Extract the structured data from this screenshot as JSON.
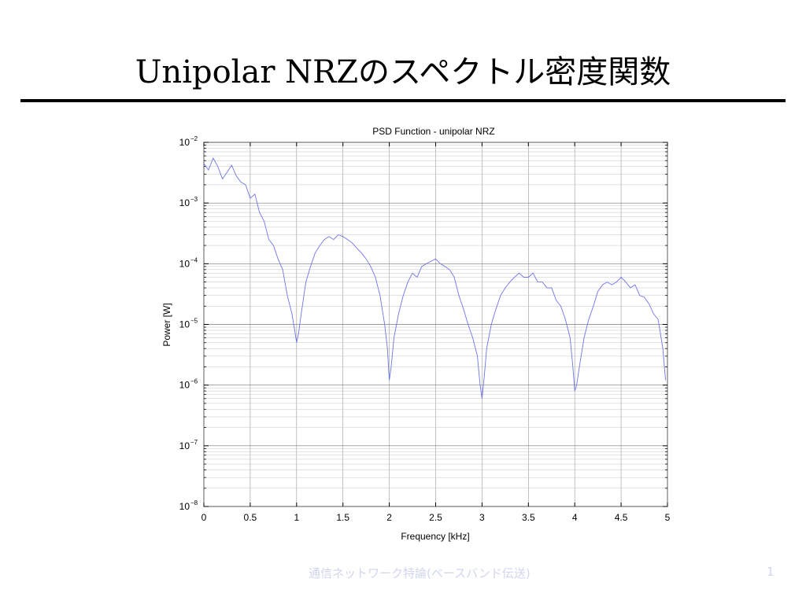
{
  "slide": {
    "title": "Unipolar NRZのスペクトル密度関数",
    "footer": "通信ネットワーク特論(ベースバンド伝送)",
    "page_number": "1"
  },
  "chart_data": {
    "type": "line",
    "title": "PSD Function - unipolar NRZ",
    "xlabel": "Frequency [kHz]",
    "ylabel": "Power [W]",
    "xlim": [
      0,
      5
    ],
    "ylim_exponent": [
      -8,
      -2
    ],
    "y_scale": "log",
    "grid": true,
    "x_ticks": [
      "0",
      "0.5",
      "1",
      "1.5",
      "2",
      "2.5",
      "3",
      "3.5",
      "4",
      "4.5",
      "5"
    ],
    "y_ticks": [
      {
        "base": "10",
        "exp": "-2"
      },
      {
        "base": "10",
        "exp": "-3"
      },
      {
        "base": "10",
        "exp": "-4"
      },
      {
        "base": "10",
        "exp": "-5"
      },
      {
        "base": "10",
        "exp": "-6"
      },
      {
        "base": "10",
        "exp": "-7"
      },
      {
        "base": "10",
        "exp": "-8"
      }
    ],
    "line_color": "#6f74e8",
    "series": [
      {
        "x": [
          0,
          0.05,
          0.1,
          0.15,
          0.2,
          0.25,
          0.3,
          0.35,
          0.4,
          0.45,
          0.5,
          0.55,
          0.6,
          0.65,
          0.7,
          0.75,
          0.8,
          0.85,
          0.9,
          0.95,
          0.98,
          1.0,
          1.02,
          1.05,
          1.1,
          1.15,
          1.2,
          1.25,
          1.3,
          1.35,
          1.4,
          1.45,
          1.5,
          1.55,
          1.6,
          1.65,
          1.7,
          1.75,
          1.8,
          1.85,
          1.9,
          1.95,
          1.98,
          2.0,
          2.02,
          2.05,
          2.1,
          2.15,
          2.2,
          2.25,
          2.3,
          2.35,
          2.4,
          2.45,
          2.5,
          2.55,
          2.6,
          2.65,
          2.7,
          2.75,
          2.8,
          2.85,
          2.9,
          2.95,
          2.98,
          3.0,
          3.02,
          3.05,
          3.1,
          3.15,
          3.2,
          3.25,
          3.3,
          3.35,
          3.4,
          3.45,
          3.5,
          3.55,
          3.6,
          3.65,
          3.7,
          3.75,
          3.8,
          3.85,
          3.9,
          3.95,
          3.98,
          4.0,
          4.02,
          4.05,
          4.1,
          4.15,
          4.2,
          4.25,
          4.3,
          4.35,
          4.4,
          4.45,
          4.5,
          4.55,
          4.6,
          4.65,
          4.7,
          4.75,
          4.8,
          4.85,
          4.9,
          4.95,
          4.98
        ],
        "y": [
          0.0045,
          0.0035,
          0.0055,
          0.004,
          0.0025,
          0.0032,
          0.0042,
          0.0028,
          0.0022,
          0.002,
          0.0012,
          0.0014,
          0.0007,
          0.0005,
          0.00025,
          0.0002,
          0.00012,
          8e-05,
          3e-05,
          1.5e-05,
          8e-06,
          5e-06,
          7e-06,
          1.5e-05,
          5e-05,
          9e-05,
          0.00015,
          0.0002,
          0.00025,
          0.00028,
          0.00025,
          0.0003,
          0.00028,
          0.00025,
          0.00022,
          0.00018,
          0.00015,
          0.00012,
          9e-05,
          6e-05,
          3e-05,
          1e-05,
          4e-06,
          1.2e-06,
          2e-06,
          6e-06,
          1.5e-05,
          3e-05,
          5e-05,
          7e-05,
          6e-05,
          9e-05,
          0.0001,
          0.00011,
          0.00012,
          0.0001,
          9e-05,
          8e-05,
          6e-05,
          3e-05,
          1.8e-05,
          1e-05,
          6e-06,
          3e-06,
          1e-06,
          6e-07,
          1.2e-06,
          4e-06,
          1e-05,
          1.8e-05,
          3e-05,
          4e-05,
          5e-05,
          6e-05,
          7e-05,
          6e-05,
          6e-05,
          7e-05,
          5e-05,
          5e-05,
          4e-05,
          4e-05,
          2.5e-05,
          2e-05,
          1.2e-05,
          6e-06,
          2e-06,
          8e-07,
          1e-06,
          2e-06,
          6e-06,
          1.2e-05,
          2e-05,
          3.5e-05,
          4.5e-05,
          5e-05,
          4.5e-05,
          5e-05,
          6e-05,
          5e-05,
          4e-05,
          4.5e-05,
          3e-05,
          2.8e-05,
          2.2e-05,
          1.5e-05,
          1.2e-05,
          4e-06,
          1.2e-06
        ]
      }
    ]
  }
}
